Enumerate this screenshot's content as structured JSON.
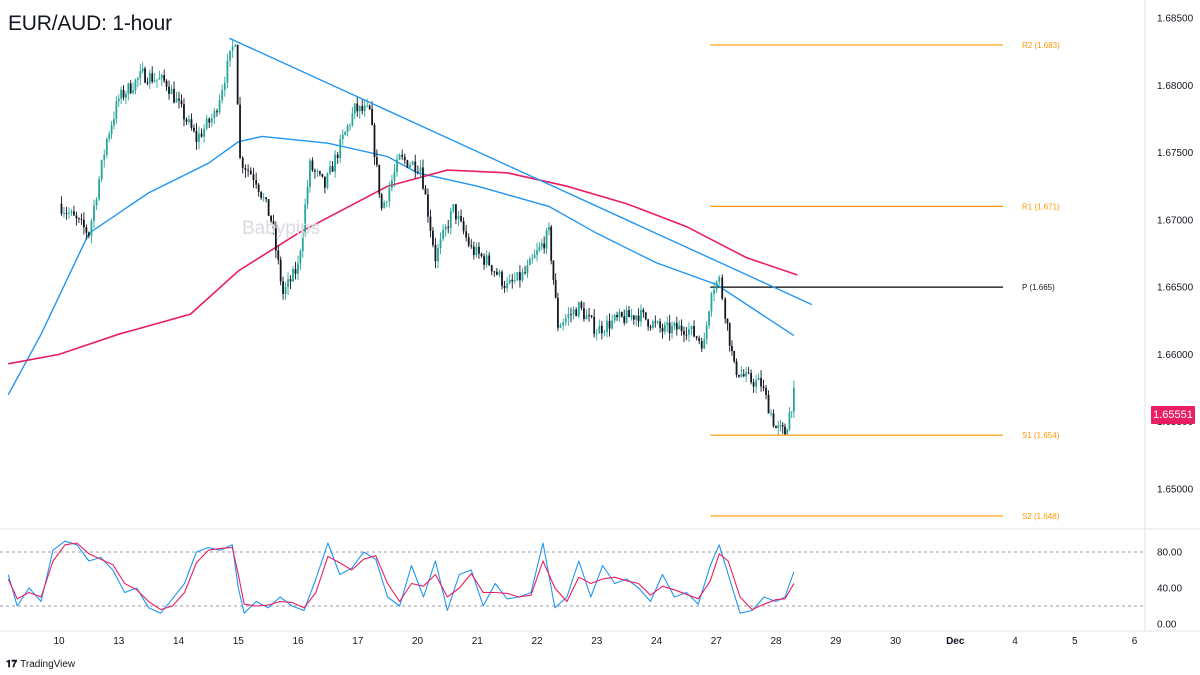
{
  "title": "EUR/AUD: 1-hour",
  "watermark": "Babypips",
  "brand": {
    "mark": "𝟏𝟕",
    "name": "TradingView"
  },
  "last_price": "1.65551",
  "colors": {
    "up": "#26a69a",
    "down": "#131722",
    "candle": "#2b2b2b",
    "ma_fast": "#2196f3",
    "ma_slow": "#e91e63",
    "trendline": "#2196f3",
    "level_orange": "#ff9800",
    "pivot": "#000000",
    "stoch_k": "#2196f3",
    "stoch_d": "#e91e63",
    "axis_text": "#131722"
  },
  "chart_data": [
    {
      "type": "candlestick",
      "title": "EUR/AUD: 1-hour",
      "ylim": [
        1.6475,
        1.6855
      ],
      "y_ticks": [
        "1.65000",
        "1.65500",
        "1.66000",
        "1.66500",
        "1.67000",
        "1.67500",
        "1.68000",
        "1.68500"
      ],
      "y_tick_values": [
        1.65,
        1.655,
        1.66,
        1.665,
        1.67,
        1.675,
        1.68,
        1.685
      ],
      "x_ticks": [
        "10",
        "13",
        "14",
        "15",
        "16",
        "17",
        "20",
        "21",
        "22",
        "23",
        "24",
        "27",
        "28",
        "29",
        "30",
        "Dec",
        "4",
        "5",
        "6"
      ],
      "anchors": [
        {
          "d": 0.0,
          "p": 1.6712
        },
        {
          "d": 0.5,
          "p": 1.669
        },
        {
          "d": 0.8,
          "p": 1.676
        },
        {
          "d": 1.0,
          "p": 1.679
        },
        {
          "d": 1.4,
          "p": 1.6808
        },
        {
          "d": 1.8,
          "p": 1.6802
        },
        {
          "d": 2.3,
          "p": 1.676
        },
        {
          "d": 2.6,
          "p": 1.6778
        },
        {
          "d": 2.95,
          "p": 1.6835
        },
        {
          "d": 3.03,
          "p": 1.6745
        },
        {
          "d": 3.3,
          "p": 1.673
        },
        {
          "d": 3.55,
          "p": 1.67
        },
        {
          "d": 3.75,
          "p": 1.6645
        },
        {
          "d": 4.0,
          "p": 1.6665
        },
        {
          "d": 4.2,
          "p": 1.674
        },
        {
          "d": 4.45,
          "p": 1.6725
        },
        {
          "d": 4.75,
          "p": 1.676
        },
        {
          "d": 4.95,
          "p": 1.6782
        },
        {
          "d": 5.2,
          "p": 1.678
        },
        {
          "d": 5.4,
          "p": 1.6708
        },
        {
          "d": 5.7,
          "p": 1.6745
        },
        {
          "d": 6.05,
          "p": 1.674
        },
        {
          "d": 6.3,
          "p": 1.6672
        },
        {
          "d": 6.6,
          "p": 1.6708
        },
        {
          "d": 6.9,
          "p": 1.6678
        },
        {
          "d": 7.2,
          "p": 1.6668
        },
        {
          "d": 7.5,
          "p": 1.665
        },
        {
          "d": 7.8,
          "p": 1.666
        },
        {
          "d": 8.2,
          "p": 1.669
        },
        {
          "d": 8.35,
          "p": 1.6622
        },
        {
          "d": 8.7,
          "p": 1.6635
        },
        {
          "d": 9.0,
          "p": 1.6618
        },
        {
          "d": 9.3,
          "p": 1.6625
        },
        {
          "d": 9.7,
          "p": 1.663
        },
        {
          "d": 10.1,
          "p": 1.6618
        },
        {
          "d": 10.5,
          "p": 1.662
        },
        {
          "d": 10.8,
          "p": 1.6608
        },
        {
          "d": 10.92,
          "p": 1.665
        },
        {
          "d": 11.05,
          "p": 1.6655
        },
        {
          "d": 11.15,
          "p": 1.6632
        },
        {
          "d": 11.3,
          "p": 1.659
        },
        {
          "d": 11.5,
          "p": 1.6582
        },
        {
          "d": 11.75,
          "p": 1.6578
        },
        {
          "d": 12.0,
          "p": 1.6545
        },
        {
          "d": 12.15,
          "p": 1.6542
        },
        {
          "d": 12.3,
          "p": 1.657
        }
      ],
      "series": [
        {
          "name": "",
          "kind": "ma_fast",
          "points": [
            [
              -0.85,
              1.657
            ],
            [
              -0.3,
              1.6615
            ],
            [
              0.5,
              1.669
            ],
            [
              1.5,
              1.672
            ],
            [
              2.5,
              1.6742
            ],
            [
              3.0,
              1.6758
            ],
            [
              3.4,
              1.6762
            ],
            [
              4.5,
              1.6757
            ],
            [
              5.5,
              1.6747
            ],
            [
              6.0,
              1.6735
            ],
            [
              7.0,
              1.6725
            ],
            [
              8.2,
              1.671
            ],
            [
              9.0,
              1.669
            ],
            [
              10.0,
              1.6668
            ],
            [
              11.0,
              1.6652
            ],
            [
              12.3,
              1.6614
            ]
          ]
        },
        {
          "name": "",
          "kind": "ma_slow",
          "points": [
            [
              -0.85,
              1.6593
            ],
            [
              0.0,
              1.66
            ],
            [
              1.0,
              1.6615
            ],
            [
              2.2,
              1.663
            ],
            [
              3.0,
              1.6662
            ],
            [
              4.0,
              1.669
            ],
            [
              5.5,
              1.6725
            ],
            [
              6.5,
              1.6737
            ],
            [
              7.5,
              1.6735
            ],
            [
              8.5,
              1.6725
            ],
            [
              9.5,
              1.6712
            ],
            [
              10.5,
              1.6695
            ],
            [
              11.5,
              1.6672
            ],
            [
              12.36,
              1.6659
            ]
          ]
        },
        {
          "name": "",
          "kind": "trendline",
          "points": [
            [
              2.85,
              1.6835
            ],
            [
              12.6,
              1.6637
            ]
          ]
        }
      ],
      "levels": [
        {
          "label": "R2 (1.683)",
          "value": 1.683,
          "color": "#ff9800"
        },
        {
          "label": "R1 (1.671)",
          "value": 1.671,
          "color": "#ff9800"
        },
        {
          "label": "P (1.665)",
          "value": 1.665,
          "color": "#000000"
        },
        {
          "label": "S1 (1.654)",
          "value": 1.654,
          "color": "#ff9800"
        },
        {
          "label": "S2 (1.648)",
          "value": 1.648,
          "color": "#ff9800"
        }
      ],
      "levels_x_range": [
        10.9,
        15.8
      ]
    },
    {
      "type": "line",
      "ylim": [
        0,
        100
      ],
      "y_ticks": [
        "80.00",
        "40.00",
        "0.00"
      ],
      "y_tick_values": [
        80,
        40,
        0
      ],
      "bands": [
        80,
        20
      ],
      "series": [
        {
          "name": "",
          "kind": "stoch_k",
          "points": [
            [
              -0.85,
              55
            ],
            [
              -0.7,
              20
            ],
            [
              -0.5,
              40
            ],
            [
              -0.3,
              25
            ],
            [
              -0.1,
              82
            ],
            [
              0.1,
              92
            ],
            [
              0.3,
              88
            ],
            [
              0.5,
              70
            ],
            [
              0.7,
              74
            ],
            [
              0.9,
              60
            ],
            [
              1.1,
              35
            ],
            [
              1.3,
              40
            ],
            [
              1.5,
              18
            ],
            [
              1.7,
              12
            ],
            [
              1.9,
              28
            ],
            [
              2.1,
              45
            ],
            [
              2.3,
              80
            ],
            [
              2.5,
              85
            ],
            [
              2.7,
              82
            ],
            [
              2.9,
              88
            ],
            [
              3.0,
              40
            ],
            [
              3.1,
              12
            ],
            [
              3.3,
              25
            ],
            [
              3.5,
              18
            ],
            [
              3.7,
              30
            ],
            [
              3.9,
              20
            ],
            [
              4.1,
              15
            ],
            [
              4.3,
              50
            ],
            [
              4.5,
              90
            ],
            [
              4.7,
              55
            ],
            [
              4.9,
              62
            ],
            [
              5.1,
              80
            ],
            [
              5.3,
              72
            ],
            [
              5.5,
              30
            ],
            [
              5.7,
              20
            ],
            [
              5.9,
              65
            ],
            [
              6.1,
              30
            ],
            [
              6.3,
              70
            ],
            [
              6.5,
              15
            ],
            [
              6.7,
              55
            ],
            [
              6.9,
              60
            ],
            [
              7.1,
              20
            ],
            [
              7.3,
              45
            ],
            [
              7.5,
              28
            ],
            [
              7.7,
              30
            ],
            [
              7.9,
              35
            ],
            [
              8.1,
              90
            ],
            [
              8.3,
              18
            ],
            [
              8.5,
              30
            ],
            [
              8.7,
              70
            ],
            [
              8.9,
              30
            ],
            [
              9.1,
              65
            ],
            [
              9.3,
              45
            ],
            [
              9.5,
              50
            ],
            [
              9.7,
              40
            ],
            [
              9.9,
              25
            ],
            [
              10.1,
              55
            ],
            [
              10.3,
              30
            ],
            [
              10.5,
              35
            ],
            [
              10.7,
              22
            ],
            [
              10.9,
              65
            ],
            [
              11.05,
              88
            ],
            [
              11.2,
              55
            ],
            [
              11.4,
              12
            ],
            [
              11.6,
              15
            ],
            [
              11.8,
              30
            ],
            [
              12.0,
              25
            ],
            [
              12.15,
              30
            ],
            [
              12.3,
              58
            ]
          ]
        },
        {
          "name": "",
          "kind": "stoch_d",
          "points": [
            [
              -0.85,
              50
            ],
            [
              -0.7,
              28
            ],
            [
              -0.5,
              35
            ],
            [
              -0.3,
              30
            ],
            [
              -0.1,
              70
            ],
            [
              0.1,
              88
            ],
            [
              0.3,
              90
            ],
            [
              0.5,
              78
            ],
            [
              0.7,
              72
            ],
            [
              0.9,
              66
            ],
            [
              1.1,
              45
            ],
            [
              1.3,
              38
            ],
            [
              1.5,
              25
            ],
            [
              1.7,
              16
            ],
            [
              1.9,
              20
            ],
            [
              2.1,
              35
            ],
            [
              2.3,
              68
            ],
            [
              2.5,
              82
            ],
            [
              2.7,
              84
            ],
            [
              2.9,
              85
            ],
            [
              3.0,
              55
            ],
            [
              3.1,
              22
            ],
            [
              3.3,
              20
            ],
            [
              3.5,
              21
            ],
            [
              3.7,
              25
            ],
            [
              3.9,
              24
            ],
            [
              4.1,
              18
            ],
            [
              4.3,
              35
            ],
            [
              4.5,
              75
            ],
            [
              4.7,
              68
            ],
            [
              4.9,
              60
            ],
            [
              5.1,
              72
            ],
            [
              5.3,
              76
            ],
            [
              5.5,
              45
            ],
            [
              5.7,
              25
            ],
            [
              5.9,
              45
            ],
            [
              6.1,
              42
            ],
            [
              6.3,
              55
            ],
            [
              6.5,
              30
            ],
            [
              6.7,
              40
            ],
            [
              6.9,
              56
            ],
            [
              7.1,
              35
            ],
            [
              7.3,
              35
            ],
            [
              7.5,
              34
            ],
            [
              7.7,
              30
            ],
            [
              7.9,
              32
            ],
            [
              8.1,
              70
            ],
            [
              8.3,
              40
            ],
            [
              8.5,
              25
            ],
            [
              8.7,
              52
            ],
            [
              8.9,
              45
            ],
            [
              9.1,
              50
            ],
            [
              9.3,
              52
            ],
            [
              9.5,
              48
            ],
            [
              9.7,
              45
            ],
            [
              9.9,
              32
            ],
            [
              10.1,
              42
            ],
            [
              10.3,
              38
            ],
            [
              10.5,
              33
            ],
            [
              10.7,
              28
            ],
            [
              10.9,
              48
            ],
            [
              11.05,
              78
            ],
            [
              11.2,
              70
            ],
            [
              11.4,
              30
            ],
            [
              11.6,
              16
            ],
            [
              11.8,
              22
            ],
            [
              12.0,
              27
            ],
            [
              12.15,
              28
            ],
            [
              12.3,
              45
            ]
          ]
        }
      ]
    }
  ]
}
